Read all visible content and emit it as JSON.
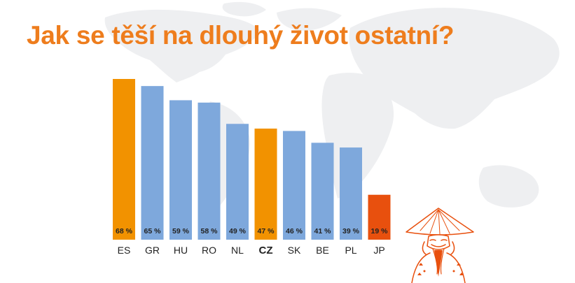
{
  "title": "Jak se těší na dlouhý život ostatní?",
  "colors": {
    "highlight": "#f29200",
    "default": "#7ea8dc",
    "japan": "#e8500e",
    "title": "#ee7d1d",
    "map": "#eeeff1"
  },
  "chart_data": {
    "type": "bar",
    "title": "Jak se těší na dlouhý život ostatní?",
    "categories": [
      "ES",
      "GR",
      "HU",
      "RO",
      "NL",
      "CZ",
      "SK",
      "BE",
      "PL",
      "JP"
    ],
    "values": [
      68,
      65,
      59,
      58,
      49,
      47,
      46,
      41,
      39,
      19
    ],
    "value_labels": [
      "68 %",
      "65 %",
      "59 %",
      "58 %",
      "49 %",
      "47 %",
      "46 %",
      "41 %",
      "39 %",
      "19 %"
    ],
    "bar_colors": [
      "#f29200",
      "#7ea8dc",
      "#7ea8dc",
      "#7ea8dc",
      "#7ea8dc",
      "#f29200",
      "#7ea8dc",
      "#7ea8dc",
      "#7ea8dc",
      "#e8500e"
    ],
    "emphasized_category": "CZ",
    "unit": "%",
    "ylim": [
      0,
      68
    ],
    "grid": false,
    "legend": false
  }
}
